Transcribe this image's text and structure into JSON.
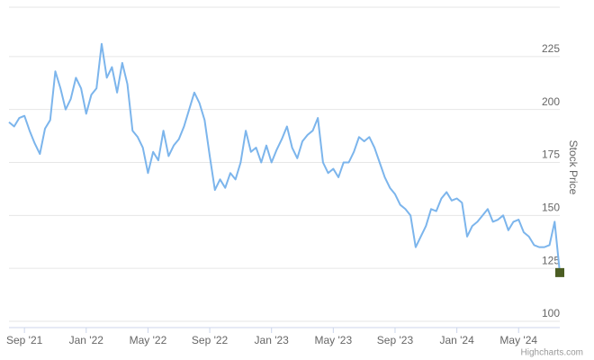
{
  "chart_data": {
    "type": "line",
    "y_axis_title": "Stock Price",
    "credit": "Highcharts.com",
    "categories": [
      null,
      null,
      null,
      "Sep '21",
      null,
      null,
      null,
      null,
      null,
      null,
      null,
      null,
      null,
      null,
      null,
      "Jan '22",
      null,
      null,
      null,
      null,
      null,
      null,
      null,
      null,
      null,
      null,
      null,
      "May '22",
      null,
      null,
      null,
      null,
      null,
      null,
      null,
      null,
      null,
      null,
      null,
      "Sep '22",
      null,
      null,
      null,
      null,
      null,
      null,
      null,
      null,
      null,
      null,
      null,
      "Jan '23",
      null,
      null,
      null,
      null,
      null,
      null,
      null,
      null,
      null,
      null,
      null,
      "May '23",
      null,
      null,
      null,
      null,
      null,
      null,
      null,
      null,
      null,
      null,
      null,
      "Sep '23",
      null,
      null,
      null,
      null,
      null,
      null,
      null,
      null,
      null,
      null,
      null,
      "Jan '24",
      null,
      null,
      null,
      null,
      null,
      null,
      null,
      null,
      null,
      null,
      null,
      "May '24",
      null,
      null,
      null,
      null,
      null,
      null,
      null,
      null
    ],
    "series": [
      {
        "name": "Stock Price",
        "color": "#7cb5ec",
        "marker_color": "#4b5d23",
        "values": [
          194,
          192,
          196,
          197,
          190,
          184,
          179,
          191,
          195,
          218,
          210,
          200,
          205,
          215,
          210,
          198,
          207,
          210,
          231,
          215,
          220,
          208,
          222,
          212,
          190,
          187,
          182,
          170,
          180,
          176,
          190,
          178,
          183,
          186,
          192,
          200,
          208,
          203,
          195,
          178,
          162,
          167,
          163,
          170,
          167,
          175,
          190,
          180,
          182,
          175,
          183,
          175,
          181,
          186,
          192,
          182,
          177,
          185,
          188,
          190,
          196,
          175,
          170,
          172,
          168,
          175,
          175,
          180,
          187,
          185,
          187,
          182,
          175,
          168,
          163,
          160,
          155,
          153,
          150,
          135,
          140,
          145,
          153,
          152,
          158,
          161,
          157,
          158,
          156,
          140,
          145,
          147,
          150,
          153,
          147,
          148,
          150,
          143,
          147,
          148,
          142,
          140,
          136,
          135,
          135,
          136,
          147,
          123
        ]
      }
    ],
    "ylim": [
      100,
      250
    ],
    "yticks": [
      100,
      125,
      150,
      175,
      200,
      225
    ],
    "grid": true
  }
}
